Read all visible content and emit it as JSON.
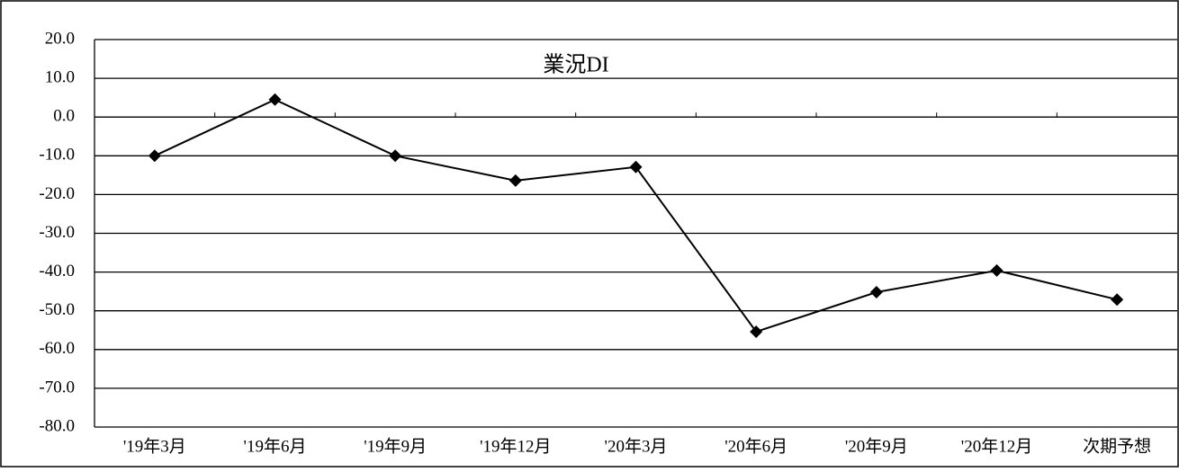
{
  "chart_data": {
    "type": "line",
    "title": "業況DI",
    "categories": [
      "'19年3月",
      "'19年6月",
      "'19年9月",
      "'19年12月",
      "'20年3月",
      "'20年6月",
      "'20年9月",
      "'20年12月",
      "次期予想"
    ],
    "series": [
      {
        "name": "業況DI",
        "color": "#000000",
        "values": [
          -10.0,
          4.5,
          -10.0,
          -16.4,
          -12.9,
          -55.4,
          -45.2,
          -39.6,
          -47.1
        ]
      }
    ],
    "ylim": [
      -80,
      20
    ],
    "yticks": [
      {
        "value": -80,
        "label": "-80.0"
      },
      {
        "value": -70,
        "label": "-70.0"
      },
      {
        "value": -60,
        "label": "-60.0"
      },
      {
        "value": -50,
        "label": "-50.0"
      },
      {
        "value": -40,
        "label": "-40.0"
      },
      {
        "value": -30,
        "label": "-30.0"
      },
      {
        "value": -20,
        "label": "-20.0"
      },
      {
        "value": -10,
        "label": "-10.0"
      },
      {
        "value": 0,
        "label": "0.0"
      },
      {
        "value": 10,
        "label": "10.0"
      },
      {
        "value": 20,
        "label": "20.0"
      }
    ],
    "grid": true
  }
}
